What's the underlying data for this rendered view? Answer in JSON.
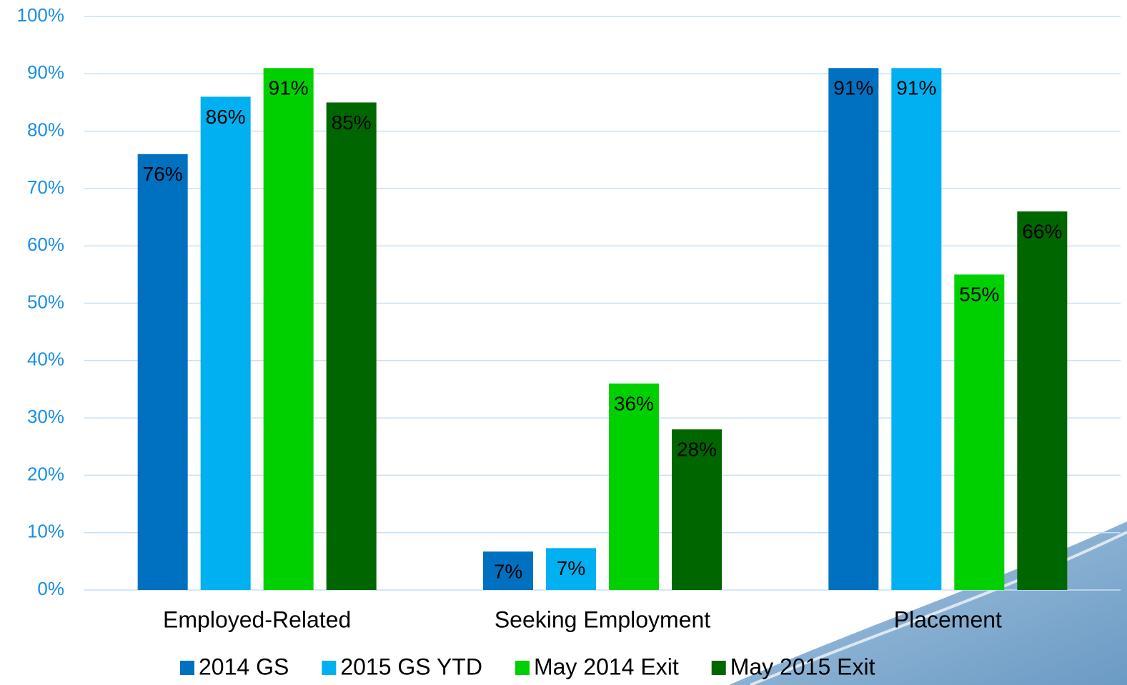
{
  "chart_data": {
    "type": "bar",
    "categories": [
      "Employed-Related",
      "Seeking Employment",
      "Placement"
    ],
    "series": [
      {
        "name": "2014 GS",
        "color": "#0070c0",
        "values": [
          76,
          6.7,
          91
        ],
        "value_labels": [
          "76%",
          "7%",
          "91%"
        ]
      },
      {
        "name": "2015 GS YTD",
        "color": "#00b0f0",
        "values": [
          86,
          7.3,
          91
        ],
        "value_labels": [
          "86%",
          "7%",
          "91%"
        ]
      },
      {
        "name": "May 2014 Exit",
        "color": "#00d000",
        "values": [
          91,
          36,
          55
        ],
        "value_labels": [
          "91%",
          "36%",
          "55%"
        ]
      },
      {
        "name": "May 2015 Exit",
        "color": "#006600",
        "values": [
          85,
          28,
          66
        ],
        "value_labels": [
          "85%",
          "28%",
          "66%"
        ]
      }
    ],
    "ylim": [
      0,
      100
    ],
    "yticks": [
      {
        "value": 0,
        "label": "0%"
      },
      {
        "value": 10,
        "label": "10%"
      },
      {
        "value": 20,
        "label": "20%"
      },
      {
        "value": 30,
        "label": "30%"
      },
      {
        "value": 40,
        "label": "40%"
      },
      {
        "value": 50,
        "label": "50%"
      },
      {
        "value": 60,
        "label": "60%"
      },
      {
        "value": 70,
        "label": "70%"
      },
      {
        "value": 80,
        "label": "80%"
      },
      {
        "value": 90,
        "label": "90%"
      },
      {
        "value": 100,
        "label": "100%"
      }
    ],
    "grid": true,
    "legend": "bottom"
  }
}
